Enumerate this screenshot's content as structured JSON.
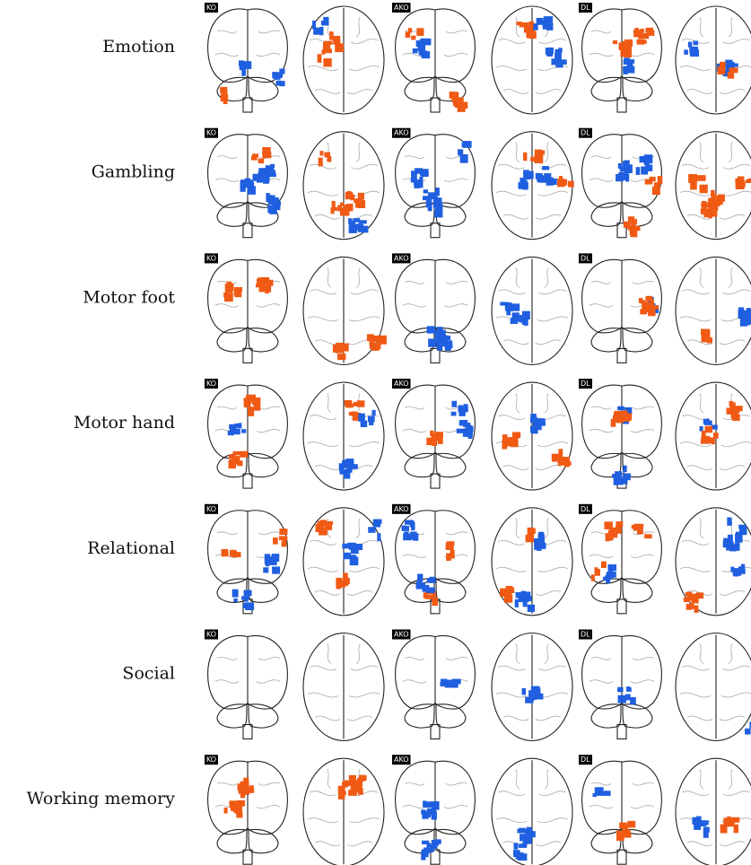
{
  "rows": [
    {
      "label": "Emotion",
      "panels": [
        "KO",
        "AKO",
        "DL"
      ]
    },
    {
      "label": "Gambling",
      "panels": [
        "KO",
        "AKO",
        "DL"
      ]
    },
    {
      "label": "Motor foot",
      "panels": [
        "KO",
        "AKO",
        "DL"
      ]
    },
    {
      "label": "Motor hand",
      "panels": [
        "KO",
        "AKO",
        "DL"
      ]
    },
    {
      "label": "Relational",
      "panels": [
        "KO",
        "AKO",
        "DL"
      ]
    },
    {
      "label": "Social",
      "panels": [
        "KO",
        "AKO",
        "DL"
      ]
    },
    {
      "label": "Working memory",
      "panels": [
        "KO",
        "AKO",
        "DL"
      ]
    }
  ]
}
